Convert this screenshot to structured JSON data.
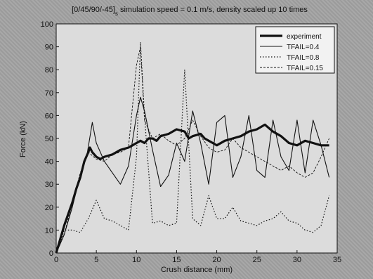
{
  "chart_data": {
    "type": "line",
    "title": "[0/45/90/-45]",
    "title_subscript": "s",
    "title_rest": " simulation speed = 0.1 m/s, density scaled up 10 times",
    "xlabel": "Crush distance (mm)",
    "ylabel": "Force (kN)",
    "xlim": [
      0,
      35
    ],
    "ylim": [
      0,
      100
    ],
    "xticks": [
      "0",
      "5",
      "10",
      "15",
      "20",
      "25",
      "30",
      "35"
    ],
    "yticks": [
      "0",
      "10",
      "20",
      "30",
      "40",
      "50",
      "60",
      "70",
      "80",
      "90",
      "100"
    ],
    "legend_position": "top-right",
    "series": [
      {
        "name": "experiment",
        "style": "thick-solid",
        "x": [
          0,
          0.5,
          1,
          1.5,
          2,
          2.5,
          3,
          3.5,
          4,
          4.2,
          4.5,
          5,
          5.5,
          6,
          7,
          8,
          9,
          9.5,
          10,
          10.5,
          11,
          11.5,
          12,
          12.5,
          13,
          14,
          15,
          16,
          16.5,
          17,
          18,
          18.5,
          19,
          19.5,
          20,
          21,
          22,
          23,
          24,
          25,
          26,
          27,
          28,
          29,
          30,
          31,
          32,
          33,
          34
        ],
        "y": [
          0,
          6,
          12,
          17,
          22,
          28,
          33,
          40,
          44,
          46,
          44,
          42,
          41,
          42,
          43,
          45,
          46,
          47,
          48,
          49,
          48,
          50,
          50,
          49,
          51,
          52,
          54,
          53,
          50,
          51,
          52,
          50,
          49,
          48,
          47,
          49,
          50,
          51,
          53,
          54,
          56,
          53,
          51,
          48,
          47,
          49,
          48,
          47,
          47
        ]
      },
      {
        "name": "TFAIL=0.4",
        "style": "thin-solid",
        "x": [
          0,
          1,
          2,
          3,
          3.8,
          4.5,
          5,
          6,
          7,
          8,
          9,
          10,
          10.5,
          11,
          12,
          13,
          14,
          15,
          16,
          17,
          18,
          19,
          20,
          21,
          22,
          23,
          24,
          25,
          26,
          27,
          28,
          29,
          30,
          31,
          32,
          33,
          34
        ],
        "y": [
          0,
          8,
          20,
          34,
          42,
          57,
          48,
          40,
          35,
          30,
          38,
          60,
          68,
          62,
          45,
          29,
          34,
          48,
          40,
          62,
          48,
          30,
          57,
          60,
          33,
          42,
          60,
          36,
          33,
          58,
          42,
          36,
          58,
          35,
          58,
          47,
          33
        ]
      },
      {
        "name": "TFAIL=0.8",
        "style": "dotted",
        "x": [
          0,
          0.5,
          1,
          2,
          3,
          4,
          5,
          6,
          7,
          8,
          9,
          10,
          10.5,
          11,
          12,
          13,
          14,
          15,
          16,
          17,
          18,
          19,
          20,
          21,
          22,
          23,
          24,
          25,
          26,
          27,
          28,
          29,
          30,
          31,
          32,
          33,
          34
        ],
        "y": [
          0,
          4,
          10,
          10,
          9,
          15,
          23,
          15,
          14,
          12,
          10,
          42,
          92,
          60,
          13,
          14,
          12,
          13,
          80,
          15,
          12,
          25,
          15,
          15,
          20,
          14,
          13,
          12,
          14,
          15,
          18,
          14,
          13,
          10,
          9,
          12,
          25
        ]
      },
      {
        "name": "TFAIL=0.15",
        "style": "thin-dashed",
        "x": [
          0,
          1,
          2,
          3,
          4,
          5,
          6,
          7,
          8,
          9,
          10,
          10.5,
          11,
          12,
          13,
          14,
          15,
          16,
          17,
          18,
          19,
          20,
          21,
          22,
          23,
          24,
          25,
          26,
          27,
          28,
          29,
          30,
          31,
          32,
          33,
          34
        ],
        "y": [
          0,
          8,
          22,
          35,
          44,
          41,
          40,
          43,
          44,
          46,
          82,
          90,
          58,
          50,
          52,
          49,
          47,
          50,
          58,
          51,
          46,
          44,
          45,
          50,
          46,
          44,
          42,
          40,
          38,
          36,
          38,
          35,
          33,
          35,
          42,
          50
        ]
      }
    ]
  }
}
